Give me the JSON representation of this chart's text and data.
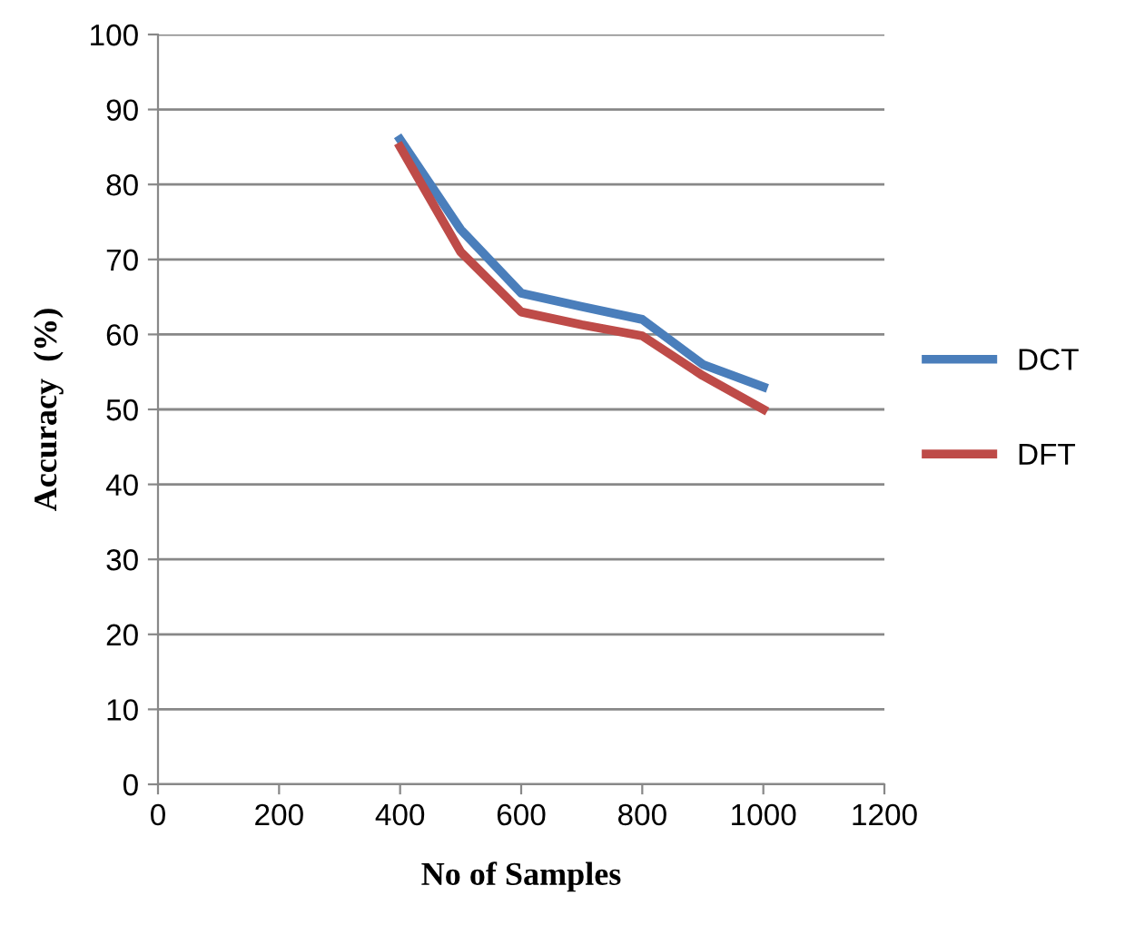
{
  "chart_data": {
    "type": "line",
    "xlabel": "No of Samples",
    "ylabel": "Accuracy  (%)",
    "x": [
      400,
      500,
      600,
      700,
      800,
      900,
      1000
    ],
    "series": [
      {
        "name": "DCT",
        "color": "#4a7ebb",
        "values": [
          86,
          74,
          65.5,
          63.7,
          62,
          56,
          53
        ]
      },
      {
        "name": "DFT",
        "color": "#be4b48",
        "values": [
          85,
          71,
          63,
          61.3,
          59.8,
          54.5,
          50
        ]
      }
    ],
    "xlim": [
      0,
      1200
    ],
    "xticks": [
      0,
      200,
      400,
      600,
      800,
      1000,
      1200
    ],
    "ylim": [
      0,
      100
    ],
    "yticks": [
      0,
      10,
      20,
      30,
      40,
      50,
      60,
      70,
      80,
      90,
      100
    ],
    "grid": "y",
    "legend": "right",
    "marker": "none",
    "line_style": "solid"
  }
}
